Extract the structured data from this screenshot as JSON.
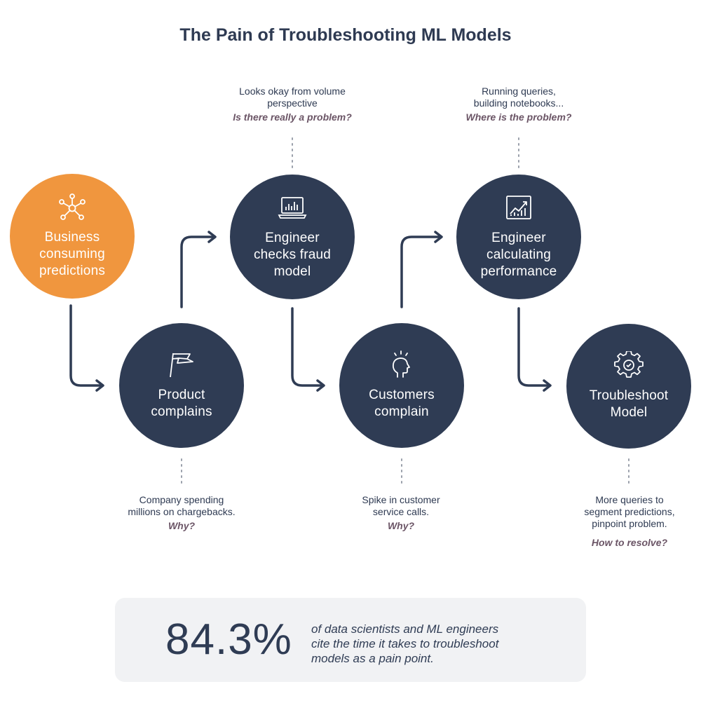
{
  "title": "The Pain of Troubleshooting ML Models",
  "colors": {
    "navy": "#2f3c54",
    "orange": "#f0963e",
    "question": "#6b5566",
    "panel": "#f1f2f4"
  },
  "nodes": [
    {
      "label": "Business\nconsuming\npredictions",
      "icon": "network-icon"
    },
    {
      "label": "Product\ncomplains",
      "icon": "flag-icon"
    },
    {
      "label": "Engineer\nchecks fraud\nmodel",
      "icon": "laptop-chart-icon"
    },
    {
      "label": "Customers\ncomplain",
      "icon": "head-alert-icon"
    },
    {
      "label": "Engineer\ncalculating\nperformance",
      "icon": "line-chart-icon"
    },
    {
      "label": "Troubleshoot\nModel",
      "icon": "gear-icon"
    }
  ],
  "notes": [
    {
      "text": "Looks okay from volume\nperspective",
      "question": "Is there really a problem?"
    },
    {
      "text": "Running queries,\nbuilding notebooks...",
      "question": "Where is the problem?"
    },
    {
      "text": "Company spending\nmillions on chargebacks.",
      "question": "Why?"
    },
    {
      "text": "Spike in customer\nservice calls.",
      "question": "Why?"
    },
    {
      "text": "More queries to\nsegment predictions,\npinpoint problem.",
      "question": "How to resolve?"
    }
  ],
  "stat": {
    "value": "84.3%",
    "description": "of data scientists and ML engineers\ncite the time it takes to troubleshoot\nmodels as a pain point."
  }
}
